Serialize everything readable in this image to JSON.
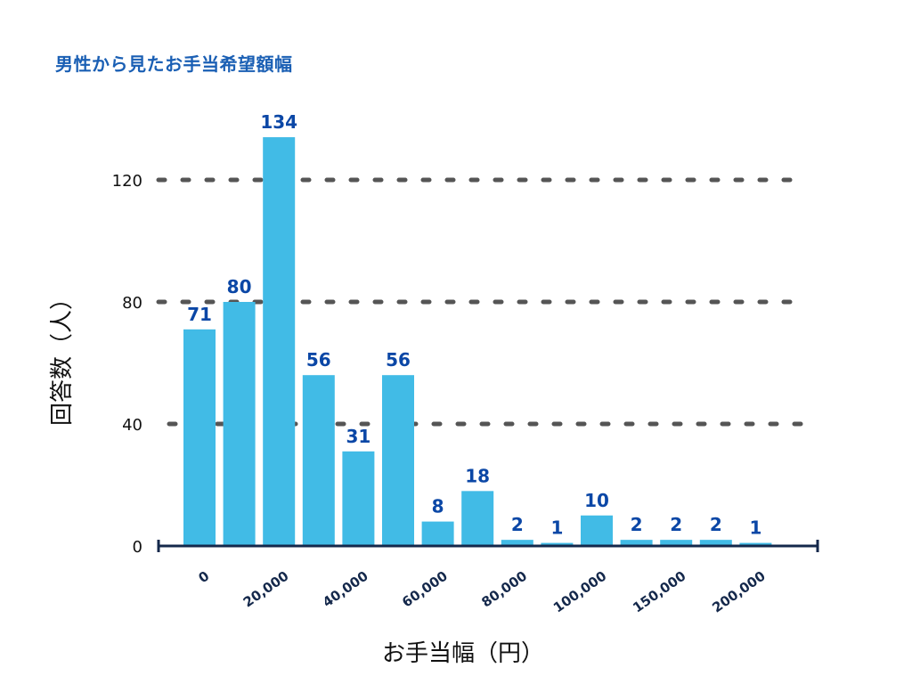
{
  "chart_data": {
    "type": "bar",
    "title": "男性から見たお手当希望額幅",
    "xlabel": "お手当幅（円）",
    "ylabel": "回答数（人）",
    "ylim": [
      0,
      134
    ],
    "yticks": [
      0,
      40,
      80,
      120
    ],
    "grid": true,
    "categories": [
      "0",
      "",
      "20,000",
      "",
      "40,000",
      "",
      "60,000",
      "",
      "80,000",
      "",
      "100,000",
      "",
      "150,000",
      "",
      "200,000"
    ],
    "values": [
      71,
      80,
      134,
      56,
      31,
      56,
      8,
      18,
      2,
      1,
      10,
      2,
      2,
      2,
      1
    ],
    "colors": {
      "bar": "#41bbe6",
      "data_label": "#0b47a6",
      "title": "#1a5fb4",
      "grid": "#555555",
      "axis": "#14284b"
    }
  }
}
